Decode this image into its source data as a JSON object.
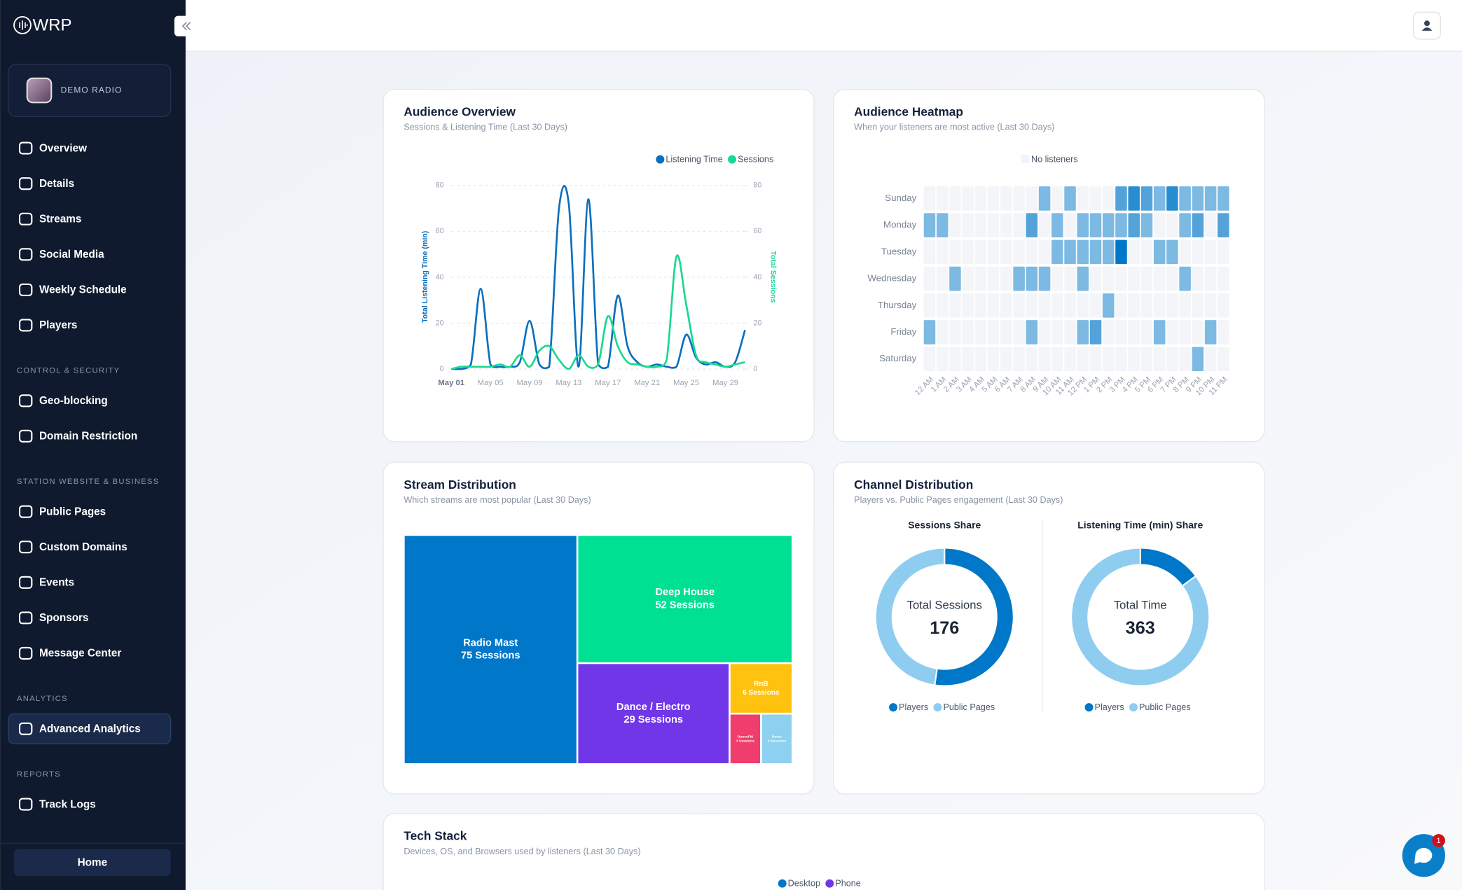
{
  "sidebar": {
    "brand": "WRP",
    "station": "DEMO RADIO",
    "groups": [
      {
        "items": [
          {
            "label": "Overview"
          },
          {
            "label": "Details"
          },
          {
            "label": "Streams"
          },
          {
            "label": "Social Media"
          },
          {
            "label": "Weekly Schedule"
          },
          {
            "label": "Players"
          }
        ]
      },
      {
        "heading": "CONTROL & SECURITY",
        "items": [
          {
            "label": "Geo-blocking"
          },
          {
            "label": "Domain Restriction"
          }
        ]
      },
      {
        "heading": "STATION WEBSITE & BUSINESS",
        "items": [
          {
            "label": "Public Pages"
          },
          {
            "label": "Custom Domains"
          },
          {
            "label": "Events"
          },
          {
            "label": "Sponsors"
          },
          {
            "label": "Message Center"
          }
        ]
      },
      {
        "heading": "ANALYTICS",
        "items": [
          {
            "label": "Advanced Analytics",
            "active": true
          }
        ]
      },
      {
        "heading": "REPORTS",
        "items": [
          {
            "label": "Track Logs"
          }
        ]
      }
    ],
    "home": "Home"
  },
  "notifications": 1,
  "chart_data": [
    {
      "type": "line",
      "title": "Audience Overview",
      "subtitle": "Sessions & Listening Time (Last 30 Days)",
      "categories": [
        "May 01",
        null,
        null,
        null,
        "May 05",
        null,
        null,
        null,
        "May 09",
        null,
        null,
        null,
        "May 13",
        null,
        null,
        null,
        "May 17",
        null,
        null,
        null,
        "May 21",
        null,
        null,
        null,
        "May 25",
        null,
        null,
        null,
        "May 29",
        null,
        null
      ],
      "series": [
        {
          "name": "Listening Time",
          "color": "#0a6fbd",
          "values": [
            0,
            0,
            2,
            35,
            2,
            1,
            1,
            3,
            21,
            2,
            1,
            70,
            72,
            1,
            74,
            2,
            1,
            32,
            10,
            3,
            1,
            2,
            1,
            1,
            15,
            5,
            2,
            3,
            1,
            3,
            17
          ]
        },
        {
          "name": "Sessions",
          "color": "#19d98f",
          "axis": "y2",
          "values": [
            0,
            1,
            1,
            1,
            1,
            2,
            1,
            6,
            1,
            8,
            10,
            4,
            0,
            6,
            1,
            2,
            23,
            10,
            3,
            2,
            1,
            1,
            4,
            49,
            28,
            6,
            3,
            2,
            1,
            2,
            3
          ]
        }
      ],
      "ylabel": "Total Listening Time (min)",
      "y2label": "Total Sessions",
      "ylim": [
        0,
        80
      ],
      "yticks": [
        0,
        20,
        40,
        60,
        80
      ],
      "y2lim": [
        0,
        80
      ],
      "y2ticks": [
        0,
        20,
        40,
        60,
        80
      ],
      "grid": true
    },
    {
      "type": "heatmap",
      "title": "Audience Heatmap",
      "subtitle": "When your listeners are most active (Last 30 Days)",
      "legend": "No listeners",
      "x": [
        "12 AM",
        "1 AM",
        "2 AM",
        "3 AM",
        "4 AM",
        "5 AM",
        "6 AM",
        "7 AM",
        "8 AM",
        "9 AM",
        "10 AM",
        "11 AM",
        "12 PM",
        "1 PM",
        "2 PM",
        "3 PM",
        "4 PM",
        "5 PM",
        "6 PM",
        "7 PM",
        "8 PM",
        "9 PM",
        "10 PM",
        "11 PM"
      ],
      "y": [
        "Sunday",
        "Monday",
        "Tuesday",
        "Wednesday",
        "Thursday",
        "Friday",
        "Saturday"
      ],
      "values": [
        [
          0,
          0,
          0,
          0,
          0,
          0,
          0,
          0,
          0,
          1,
          0,
          1,
          0,
          0,
          0,
          2,
          3,
          2,
          1,
          3,
          1,
          1,
          1,
          1
        ],
        [
          1,
          1,
          0,
          0,
          0,
          0,
          0,
          0,
          2,
          0,
          1,
          0,
          1,
          1,
          1,
          1,
          2,
          1,
          0,
          0,
          1,
          2,
          0,
          2
        ],
        [
          0,
          0,
          0,
          0,
          0,
          0,
          0,
          0,
          0,
          0,
          1,
          1,
          1,
          1,
          1,
          4,
          0,
          0,
          1,
          1,
          0,
          0,
          0,
          0
        ],
        [
          0,
          0,
          1,
          0,
          0,
          0,
          0,
          1,
          1,
          1,
          0,
          0,
          1,
          0,
          0,
          0,
          0,
          0,
          0,
          0,
          1,
          0,
          0,
          0
        ],
        [
          0,
          0,
          0,
          0,
          0,
          0,
          0,
          0,
          0,
          0,
          0,
          0,
          0,
          0,
          1,
          0,
          0,
          0,
          0,
          0,
          0,
          0,
          0,
          0
        ],
        [
          1,
          0,
          0,
          0,
          0,
          0,
          0,
          0,
          1,
          0,
          0,
          0,
          1,
          2,
          0,
          0,
          0,
          0,
          1,
          0,
          0,
          0,
          1,
          0
        ],
        [
          0,
          0,
          0,
          0,
          0,
          0,
          0,
          0,
          0,
          0,
          0,
          0,
          0,
          0,
          0,
          0,
          0,
          0,
          0,
          0,
          0,
          1,
          0,
          0
        ]
      ],
      "color": "#0077c8",
      "empty_color": "#f3f5f8"
    },
    {
      "type": "treemap",
      "title": "Stream Distribution",
      "subtitle": "Which streams are most popular (Last 30 Days)",
      "categories": [
        "Radio Mast",
        "Deep House",
        "Dance / Electro",
        "RnB",
        "DanceFM",
        "Demo"
      ],
      "values": [
        75,
        52,
        29,
        6,
        3,
        3
      ],
      "value_labels": [
        "75 Sessions",
        "52 Sessions",
        "29 Sessions",
        "6 Sessions",
        "3 Sessions",
        "3 Sessions"
      ],
      "colors": [
        "#0077c8",
        "#00e093",
        "#7036e8",
        "#ffc20e",
        "#ef3e6d",
        "#8ed0f0"
      ]
    },
    {
      "type": "donut",
      "title": "Channel Distribution",
      "subtitle": "Players vs. Public Pages engagement (Last 30 Days)",
      "panels": [
        {
          "title": "Sessions Share",
          "center_label": "Total Sessions",
          "total": 176,
          "categories": [
            "Players",
            "Public Pages"
          ],
          "values": [
            92,
            84
          ],
          "colors": [
            "#0077c8",
            "#8ecdf0"
          ]
        },
        {
          "title": "Listening Time (min) Share",
          "center_label": "Total Time",
          "total": 363,
          "categories": [
            "Players",
            "Public Pages"
          ],
          "values": [
            54,
            309
          ],
          "colors": [
            "#0077c8",
            "#8ecdf0"
          ]
        }
      ]
    },
    {
      "type": "bar",
      "title": "Tech Stack",
      "subtitle": "Devices, OS, and Browsers used by listeners (Last 30 Days)",
      "series": [
        {
          "name": "Desktop",
          "color": "#0077c8"
        },
        {
          "name": "Phone",
          "color": "#7036e8"
        }
      ]
    }
  ]
}
